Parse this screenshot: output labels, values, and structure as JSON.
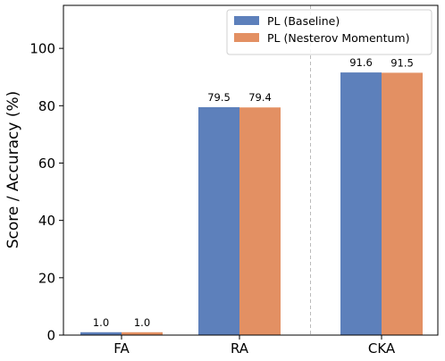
{
  "chart_data": {
    "type": "bar",
    "categories": [
      "FA",
      "RA",
      "CKA"
    ],
    "series": [
      {
        "name": "PL (Baseline)",
        "values": [
          1.0,
          79.5,
          91.6
        ],
        "labels": [
          "1.0",
          "79.5",
          "91.6"
        ],
        "color": "#5d80bb"
      },
      {
        "name": "PL (Nesterov Momentum)",
        "values": [
          1.0,
          79.4,
          91.5
        ],
        "labels": [
          "1.0",
          "79.4",
          "91.5"
        ],
        "color": "#e39063"
      }
    ],
    "ylabel": "Score / Accuracy (%)",
    "xlabel": "",
    "ylim": [
      0,
      115
    ],
    "yticks": [
      0,
      20,
      40,
      60,
      80,
      100
    ],
    "ytick_labels": [
      "0",
      "20",
      "40",
      "60",
      "80",
      "100"
    ],
    "grid": false,
    "separator": {
      "between": [
        "RA",
        "CKA"
      ],
      "style": "dashed",
      "color": "#bbbbbb"
    },
    "legend": {
      "position": "top-right"
    }
  }
}
